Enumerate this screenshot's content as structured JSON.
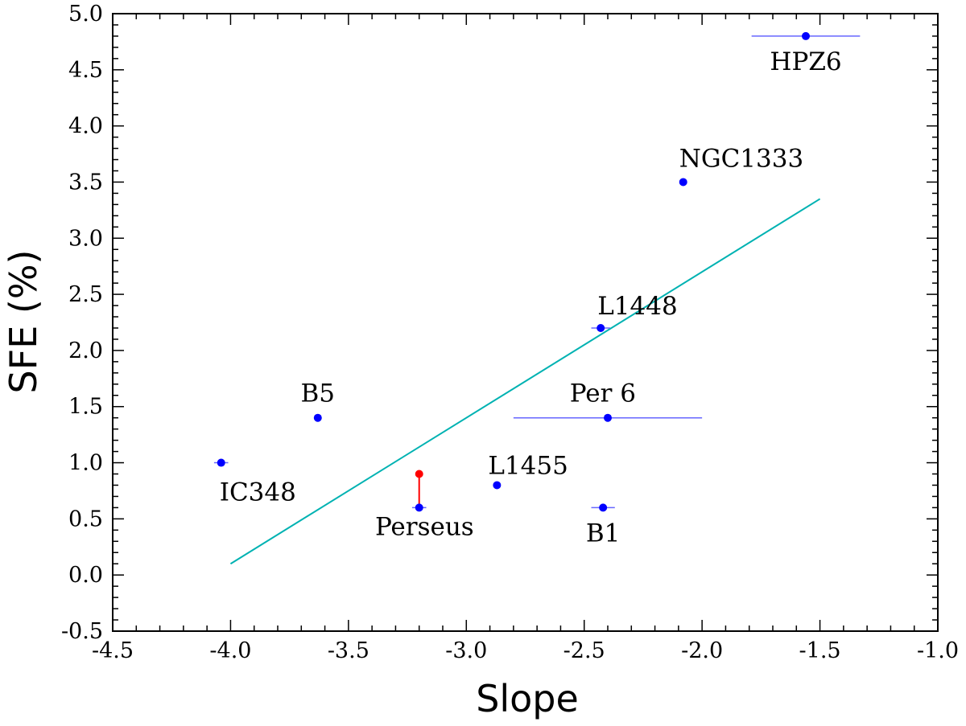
{
  "chart_data": {
    "type": "scatter",
    "title": "",
    "xlabel": "Slope",
    "ylabel": "SFE (%)",
    "xlim": [
      -4.5,
      -1.0
    ],
    "ylim": [
      -0.5,
      5.0
    ],
    "x_major_ticks": [
      -4.5,
      -4.0,
      -3.5,
      -3.0,
      -2.5,
      -2.0,
      -1.5,
      -1.0
    ],
    "x_tick_labels": [
      "-4.5",
      "-4.0",
      "-3.5",
      "-3.0",
      "-2.5",
      "-2.0",
      "-1.5",
      "-1.0"
    ],
    "y_major_ticks": [
      -0.5,
      0.0,
      0.5,
      1.0,
      1.5,
      2.0,
      2.5,
      3.0,
      3.5,
      4.0,
      4.5,
      5.0
    ],
    "y_tick_labels": [
      "-0.5",
      "0.0",
      "0.5",
      "1.0",
      "1.5",
      "2.0",
      "2.5",
      "3.0",
      "3.5",
      "4.0",
      "4.5",
      "5.0"
    ],
    "minor_step": 0.1,
    "points": [
      {
        "name": "IC348",
        "x": -4.04,
        "y": 1.0,
        "xerr": 0.03,
        "label_pos": "below-right"
      },
      {
        "name": "B5",
        "x": -3.63,
        "y": 1.4,
        "xerr": 0.0,
        "label_pos": "above"
      },
      {
        "name": "Perseus",
        "x": -3.2,
        "y": 0.6,
        "xerr": 0.03,
        "label_pos": "below-left"
      },
      {
        "name": "L1455",
        "x": -2.87,
        "y": 0.8,
        "xerr": 0.0,
        "label_pos": "above-right"
      },
      {
        "name": "B1",
        "x": -2.42,
        "y": 0.6,
        "xerr": 0.05,
        "label_pos": "below"
      },
      {
        "name": "Per 6",
        "x": -2.4,
        "y": 1.4,
        "xerr": 0.4,
        "label_pos": "above-left"
      },
      {
        "name": "L1448",
        "x": -2.43,
        "y": 2.2,
        "xerr": 0.04,
        "label_pos": "above-right"
      },
      {
        "name": "NGC1333",
        "x": -2.08,
        "y": 3.5,
        "xerr": 0.0,
        "label_pos": "above-right"
      },
      {
        "name": "HPZ6",
        "x": -1.56,
        "y": 4.8,
        "xerr": 0.23,
        "label_pos": "below"
      }
    ],
    "extra_point": {
      "x": -3.2,
      "y": 0.9,
      "connect_to_y": 0.6,
      "color": "#ff0000"
    },
    "fit_line": {
      "x": [
        -4.0,
        -1.5
      ],
      "y": [
        0.1,
        3.35
      ],
      "color": "#00b2b2"
    },
    "point_color": "#0000ff",
    "errorbar_color": "#6666ff"
  }
}
